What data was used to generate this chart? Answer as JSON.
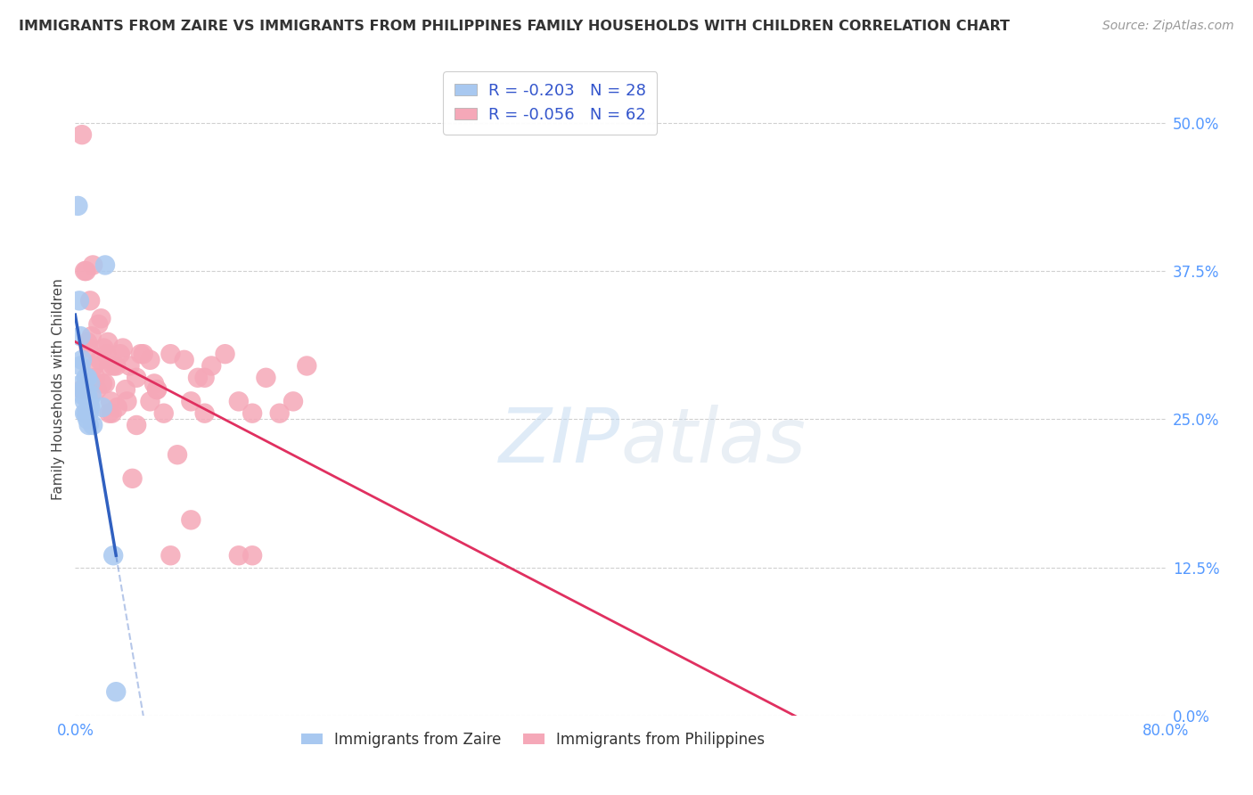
{
  "title": "IMMIGRANTS FROM ZAIRE VS IMMIGRANTS FROM PHILIPPINES FAMILY HOUSEHOLDS WITH CHILDREN CORRELATION CHART",
  "source": "Source: ZipAtlas.com",
  "ylabel": "Family Households with Children",
  "xlabel": "",
  "xlim": [
    0.0,
    0.8
  ],
  "ylim": [
    0.0,
    0.55
  ],
  "yticks": [
    0.0,
    0.125,
    0.25,
    0.375,
    0.5
  ],
  "ytick_labels": [
    "0.0%",
    "12.5%",
    "25.0%",
    "37.5%",
    "50.0%"
  ],
  "xticks": [
    0.0,
    0.1,
    0.2,
    0.3,
    0.4,
    0.5,
    0.6,
    0.7,
    0.8
  ],
  "xtick_labels": [
    "0.0%",
    "",
    "",
    "",
    "",
    "",
    "",
    "",
    "80.0%"
  ],
  "zaire_color": "#a8c8f0",
  "philippines_color": "#f5a8b8",
  "zaire_line_color": "#3060c0",
  "philippines_line_color": "#e03060",
  "legend_zaire_label": "R = -0.203   N = 28",
  "legend_philippines_label": "R = -0.056   N = 62",
  "watermark_left": "ZIP",
  "watermark_right": "atlas",
  "background_color": "#ffffff",
  "grid_color": "#d0d0d0",
  "zaire_points_x": [
    0.002,
    0.003,
    0.004,
    0.004,
    0.005,
    0.005,
    0.006,
    0.006,
    0.007,
    0.007,
    0.007,
    0.008,
    0.008,
    0.008,
    0.009,
    0.009,
    0.009,
    0.01,
    0.01,
    0.01,
    0.011,
    0.011,
    0.012,
    0.013,
    0.02,
    0.022,
    0.028,
    0.03
  ],
  "zaire_points_y": [
    0.43,
    0.35,
    0.32,
    0.295,
    0.3,
    0.28,
    0.275,
    0.27,
    0.275,
    0.265,
    0.255,
    0.285,
    0.27,
    0.255,
    0.285,
    0.27,
    0.25,
    0.265,
    0.255,
    0.245,
    0.28,
    0.26,
    0.27,
    0.245,
    0.26,
    0.38,
    0.135,
    0.02
  ],
  "philippines_points_x": [
    0.005,
    0.007,
    0.008,
    0.009,
    0.01,
    0.011,
    0.012,
    0.013,
    0.014,
    0.015,
    0.016,
    0.017,
    0.018,
    0.019,
    0.02,
    0.021,
    0.022,
    0.023,
    0.024,
    0.025,
    0.026,
    0.027,
    0.028,
    0.03,
    0.031,
    0.033,
    0.035,
    0.037,
    0.04,
    0.042,
    0.045,
    0.048,
    0.05,
    0.055,
    0.058,
    0.06,
    0.065,
    0.07,
    0.075,
    0.08,
    0.085,
    0.09,
    0.095,
    0.1,
    0.11,
    0.12,
    0.13,
    0.14,
    0.15,
    0.16,
    0.17,
    0.12,
    0.13,
    0.095,
    0.085,
    0.07,
    0.06,
    0.055,
    0.045,
    0.038,
    0.025,
    0.005
  ],
  "philippines_points_y": [
    0.49,
    0.375,
    0.375,
    0.315,
    0.31,
    0.35,
    0.32,
    0.38,
    0.295,
    0.285,
    0.275,
    0.33,
    0.3,
    0.335,
    0.28,
    0.31,
    0.28,
    0.305,
    0.315,
    0.255,
    0.265,
    0.255,
    0.295,
    0.295,
    0.26,
    0.305,
    0.31,
    0.275,
    0.295,
    0.2,
    0.245,
    0.305,
    0.305,
    0.3,
    0.28,
    0.275,
    0.255,
    0.135,
    0.22,
    0.3,
    0.265,
    0.285,
    0.285,
    0.295,
    0.305,
    0.135,
    0.255,
    0.285,
    0.255,
    0.265,
    0.295,
    0.265,
    0.135,
    0.255,
    0.165,
    0.305,
    0.275,
    0.265,
    0.285,
    0.265,
    0.295,
    0.275
  ]
}
